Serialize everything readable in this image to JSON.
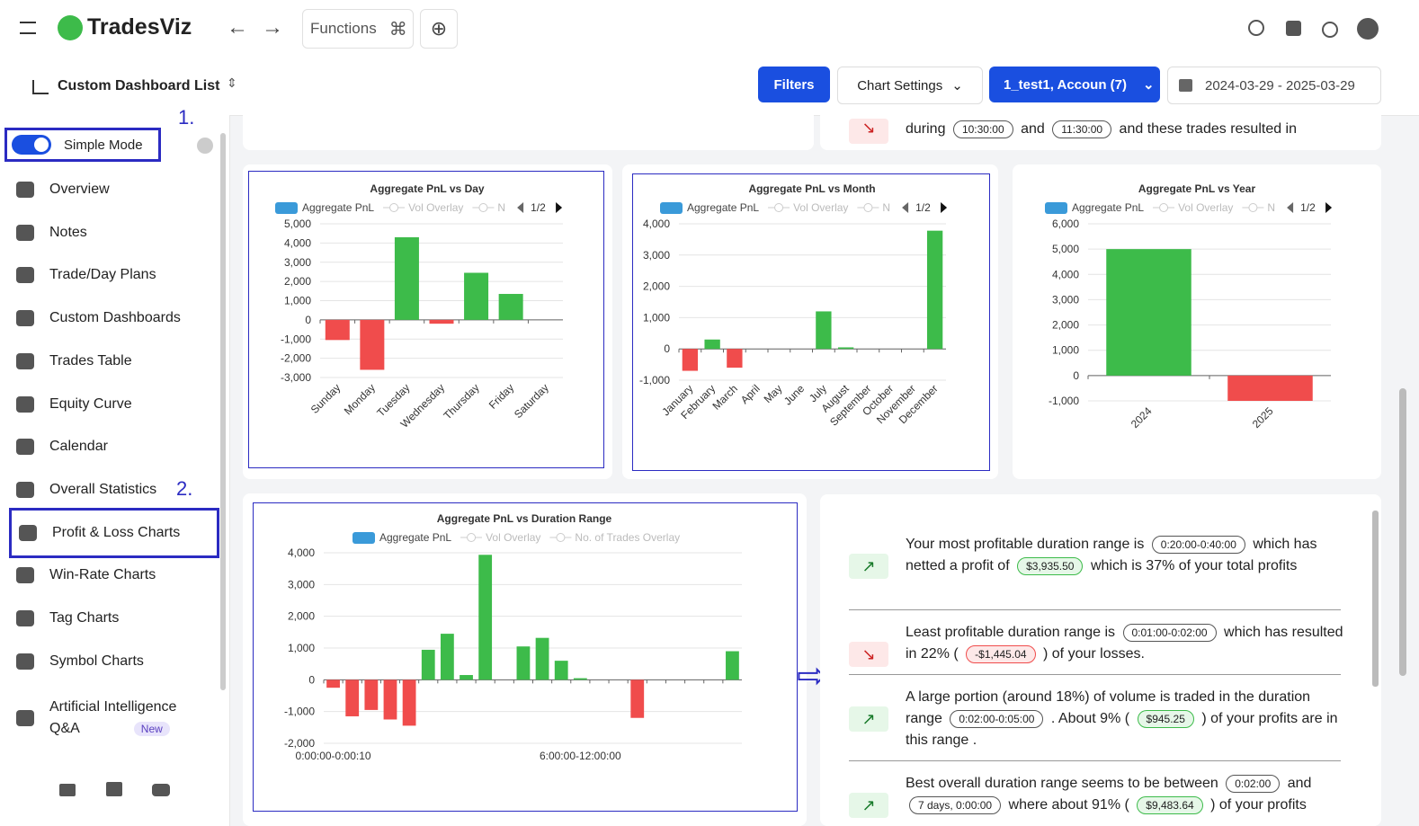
{
  "header": {
    "brand": "TradesViz",
    "functions": "Functions"
  },
  "toolbar": {
    "title": "Custom Dashboard List",
    "filters": "Filters",
    "chart_settings": "Chart Settings",
    "accounts": "1_test1, Accoun (7)",
    "date_range": "2024-03-29 - 2025-03-29"
  },
  "sidebar": {
    "mode": "Simple Mode",
    "annotations": [
      "1.",
      "2."
    ],
    "items": [
      "Overview",
      "Notes",
      "Trade/Day Plans",
      "Custom Dashboards",
      "Trades Table",
      "Equity Curve",
      "Calendar",
      "Overall Statistics",
      "Profit & Loss Charts",
      "Win-Rate Charts",
      "Tag Charts",
      "Symbol Charts",
      "Artificial Intelligence Q&A"
    ],
    "badge": "New",
    "selected": 8
  },
  "chart_data": [
    {
      "type": "bar",
      "title": "Aggregate PnL vs Day",
      "series": [
        {
          "name": "Aggregate PnL",
          "color": "#3a9ad9",
          "values": [
            -1050,
            -2600,
            4300,
            -200,
            2450,
            1350,
            0
          ]
        }
      ],
      "legend": [
        "Vol Overlay",
        "N"
      ],
      "legend_page": "1/2",
      "positive_color": "#3dbb4a",
      "negative_color": "#f04c4c",
      "categories": [
        "Sunday",
        "Monday",
        "Tuesday",
        "Wednesday",
        "Thursday",
        "Friday",
        "Saturday"
      ],
      "ylim": [
        -3000,
        5000
      ],
      "yticks": [
        {
          "value": -3000,
          "label": "-3,000"
        },
        {
          "value": -2000,
          "label": "-2,000"
        },
        {
          "value": -1000,
          "label": "-1,000"
        },
        0,
        {
          "value": 1000,
          "label": "1,000"
        },
        {
          "value": 2000,
          "label": "2,000"
        },
        {
          "value": 3000,
          "label": "3,000"
        },
        {
          "value": 4000,
          "label": "4,000"
        },
        {
          "value": 5000,
          "label": "5,000"
        }
      ],
      "grid": true,
      "rotate_labels": true
    },
    {
      "type": "bar",
      "title": "Aggregate PnL vs Month",
      "series": [
        {
          "name": "Aggregate PnL",
          "color": "#3a9ad9",
          "values": [
            -700,
            300,
            -600,
            0,
            0,
            0,
            1200,
            50,
            0,
            0,
            0,
            3780
          ]
        }
      ],
      "legend": [
        "Vol Overlay",
        "N"
      ],
      "legend_page": "1/2",
      "positive_color": "#3dbb4a",
      "negative_color": "#f04c4c",
      "categories": [
        "January",
        "February",
        "March",
        "April",
        "May",
        "June",
        "July",
        "August",
        "September",
        "October",
        "November",
        "December"
      ],
      "ylim": [
        -1000,
        4000
      ],
      "yticks": [
        {
          "value": -1000,
          "label": "-1,000"
        },
        0,
        {
          "value": 1000,
          "label": "1,000"
        },
        {
          "value": 2000,
          "label": "2,000"
        },
        {
          "value": 3000,
          "label": "3,000"
        },
        {
          "value": 4000,
          "label": "4,000"
        }
      ],
      "grid": true,
      "rotate_labels": true
    },
    {
      "type": "bar",
      "title": "Aggregate PnL vs Year",
      "series": [
        {
          "name": "Aggregate PnL",
          "color": "#3a9ad9",
          "values": [
            5000,
            -1000
          ]
        }
      ],
      "legend": [
        "Vol Overlay",
        "N"
      ],
      "legend_page": "1/2",
      "positive_color": "#3dbb4a",
      "negative_color": "#f04c4c",
      "categories": [
        "2024",
        "2025"
      ],
      "ylim": [
        -1000,
        6000
      ],
      "yticks": [
        {
          "value": -1000,
          "label": "-1,000"
        },
        0,
        {
          "value": 1000,
          "label": "1,000"
        },
        {
          "value": 2000,
          "label": "2,000"
        },
        {
          "value": 3000,
          "label": "3,000"
        },
        {
          "value": 4000,
          "label": "4,000"
        },
        {
          "value": 5000,
          "label": "5,000"
        },
        {
          "value": 6000,
          "label": "6,000"
        }
      ],
      "grid": true,
      "rotate_labels": true
    },
    {
      "type": "bar",
      "title": "Aggregate PnL vs Duration Range",
      "series": [
        {
          "name": "Aggregate PnL",
          "color": "#3a9ad9",
          "values": [
            -250,
            -1150,
            -950,
            -1250,
            -1445.04,
            945.25,
            1450,
            150,
            3935.5,
            0,
            1050,
            1320,
            600,
            50,
            0,
            0,
            -1200,
            0,
            0,
            0,
            0,
            900
          ]
        }
      ],
      "legend": [
        "Vol Overlay",
        "No. of Trades Overlay"
      ],
      "positive_color": "#3dbb4a",
      "negative_color": "#f04c4c",
      "categories": [
        "0:00:00-0:00:10",
        null,
        null,
        null,
        null,
        null,
        null,
        null,
        null,
        null,
        null,
        null,
        null,
        "6:00:00-12:00:00",
        null,
        null,
        null,
        null,
        null,
        null,
        null,
        null
      ],
      "ylim": [
        -2000,
        4000
      ],
      "yticks": [
        {
          "value": -2000,
          "label": "-2,000"
        },
        {
          "value": -1000,
          "label": "-1,000"
        },
        0,
        {
          "value": 1000,
          "label": "1,000"
        },
        {
          "value": 2000,
          "label": "2,000"
        },
        {
          "value": 3000,
          "label": "3,000"
        },
        {
          "value": 4000,
          "label": "4,000"
        }
      ],
      "grid": true,
      "rotate_labels": false
    }
  ],
  "insights": {
    "top": [
      {
        "text": "during"
      },
      {
        "tag": "10:30:00"
      },
      {
        "text": "and"
      },
      {
        "tag": "11:30:00"
      },
      {
        "text": "and these trades resulted in"
      }
    ],
    "items": [
      {
        "trend": "up",
        "segments": [
          {
            "text": "Your most profitable duration range is"
          },
          {
            "tag": "0:20:00-0:40:00"
          },
          {
            "text": "which has netted a profit of"
          },
          {
            "gain": "$3,935.50"
          },
          {
            "text": "which is 37% of your total profits"
          }
        ]
      },
      {
        "trend": "down",
        "segments": [
          {
            "text": "Least profitable duration range is"
          },
          {
            "tag": "0:01:00-0:02:00"
          },
          {
            "text": "which has resulted in 22% ("
          },
          {
            "loss": "-$1,445.04"
          },
          {
            "text": ") of your losses."
          }
        ]
      },
      {
        "trend": "up",
        "segments": [
          {
            "text": "A large portion (around 18%) of volume is traded in the duration range"
          },
          {
            "tag": "0:02:00-0:05:00"
          },
          {
            "text": ". About 9% ("
          },
          {
            "gain": "$945.25"
          },
          {
            "text": ") of your profits are in this range ."
          }
        ]
      },
      {
        "trend": "up",
        "segments": [
          {
            "text": "Best overall duration range seems to be between"
          },
          {
            "tag": "0:02:00"
          },
          {
            "text": "and"
          },
          {
            "tag": "7 days, 0:00:00"
          },
          {
            "text": "where about 91% ("
          },
          {
            "gain": "$9,483.64"
          },
          {
            "text": ") of your profits"
          }
        ]
      }
    ]
  }
}
